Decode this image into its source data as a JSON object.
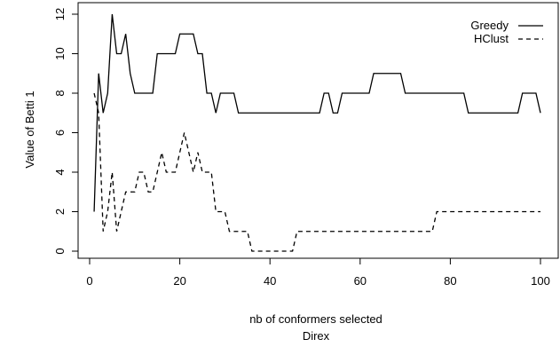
{
  "chart_data": {
    "type": "line",
    "title": "",
    "subtitle": "Direx",
    "xlabel": "nb of conformers selected",
    "ylabel": "Value of Betti 1",
    "xlim": [
      0,
      100
    ],
    "ylim": [
      0,
      12
    ],
    "xticks": [
      0,
      20,
      40,
      60,
      80,
      100
    ],
    "yticks": [
      0,
      2,
      4,
      6,
      8,
      10,
      12
    ],
    "grid": false,
    "legend_position": "top-right",
    "series": [
      {
        "name": "Greedy",
        "line_style": "solid",
        "color": "#000000",
        "x": [
          1,
          2,
          3,
          4,
          5,
          6,
          7,
          8,
          9,
          10,
          11,
          12,
          13,
          14,
          15,
          16,
          17,
          18,
          19,
          20,
          21,
          22,
          23,
          24,
          25,
          26,
          27,
          28,
          29,
          30,
          31,
          32,
          33,
          34,
          35,
          36,
          37,
          38,
          39,
          40,
          41,
          42,
          43,
          44,
          45,
          46,
          47,
          48,
          49,
          50,
          51,
          52,
          53,
          54,
          55,
          56,
          57,
          58,
          59,
          60,
          61,
          62,
          63,
          64,
          65,
          66,
          67,
          68,
          69,
          70,
          71,
          72,
          73,
          74,
          75,
          76,
          77,
          78,
          79,
          80,
          81,
          82,
          83,
          84,
          85,
          86,
          87,
          88,
          89,
          90,
          91,
          92,
          93,
          94,
          95,
          96,
          97,
          98,
          99,
          100
        ],
        "values": [
          2,
          9,
          7,
          8,
          12,
          10,
          10,
          11,
          9,
          8,
          8,
          8,
          8,
          8,
          10,
          10,
          10,
          10,
          10,
          11,
          11,
          11,
          11,
          10,
          10,
          8,
          8,
          7,
          8,
          8,
          8,
          8,
          7,
          7,
          7,
          7,
          7,
          7,
          7,
          7,
          7,
          7,
          7,
          7,
          7,
          7,
          7,
          7,
          7,
          7,
          7,
          8,
          8,
          7,
          7,
          8,
          8,
          8,
          8,
          8,
          8,
          8,
          9,
          9,
          9,
          9,
          9,
          9,
          9,
          8,
          8,
          8,
          8,
          8,
          8,
          8,
          8,
          8,
          8,
          8,
          8,
          8,
          8,
          7,
          7,
          7,
          7,
          7,
          7,
          7,
          7,
          7,
          7,
          7,
          7,
          8,
          8,
          8,
          8,
          7
        ]
      },
      {
        "name": "HClust",
        "line_style": "dashed",
        "color": "#000000",
        "x": [
          1,
          2,
          3,
          4,
          5,
          6,
          7,
          8,
          9,
          10,
          11,
          12,
          13,
          14,
          15,
          16,
          17,
          18,
          19,
          20,
          21,
          22,
          23,
          24,
          25,
          26,
          27,
          28,
          29,
          30,
          31,
          32,
          33,
          34,
          35,
          36,
          37,
          38,
          39,
          40,
          41,
          42,
          43,
          44,
          45,
          46,
          47,
          48,
          49,
          50,
          51,
          52,
          53,
          54,
          55,
          56,
          57,
          58,
          59,
          60,
          61,
          62,
          63,
          64,
          65,
          66,
          67,
          68,
          69,
          70,
          71,
          72,
          73,
          74,
          75,
          76,
          77,
          78,
          79,
          80,
          81,
          82,
          83,
          84,
          85,
          86,
          87,
          88,
          89,
          90,
          91,
          92,
          93,
          94,
          95,
          96,
          97,
          98,
          99,
          100
        ],
        "values": [
          8,
          7,
          1,
          2,
          4,
          1,
          2,
          3,
          3,
          3,
          4,
          4,
          3,
          3,
          4,
          5,
          4,
          4,
          4,
          5,
          6,
          5,
          4,
          5,
          4,
          4,
          4,
          2,
          2,
          2,
          1,
          1,
          1,
          1,
          1,
          0,
          0,
          0,
          0,
          0,
          0,
          0,
          0,
          0,
          0,
          1,
          1,
          1,
          1,
          1,
          1,
          1,
          1,
          1,
          1,
          1,
          1,
          1,
          1,
          1,
          1,
          1,
          1,
          1,
          1,
          1,
          1,
          1,
          1,
          1,
          1,
          1,
          1,
          1,
          1,
          1,
          2,
          2,
          2,
          2,
          2,
          2,
          2,
          2,
          2,
          2,
          2,
          2,
          2,
          2,
          2,
          2,
          2,
          2,
          2,
          2,
          2,
          2,
          2,
          2
        ]
      }
    ]
  }
}
